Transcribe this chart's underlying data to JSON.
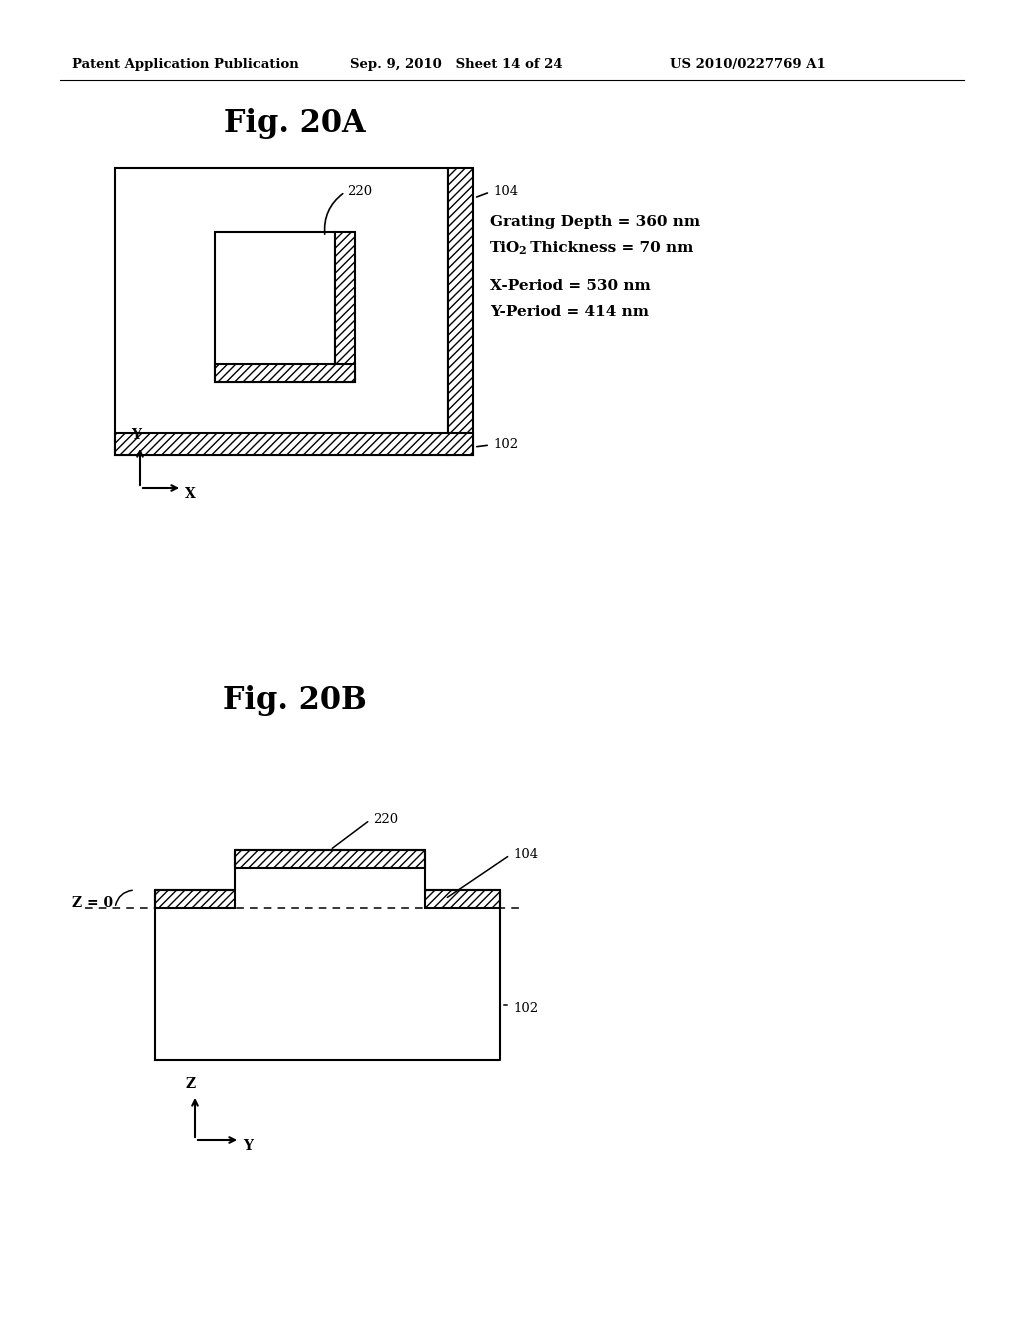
{
  "header_left": "Patent Application Publication",
  "header_mid": "Sep. 9, 2010   Sheet 14 of 24",
  "header_right": "US 2010/0227769 A1",
  "fig_a_title": "Fig. 20A",
  "fig_b_title": "Fig. 20B",
  "bg_color": "#ffffff",
  "line_color": "#000000",
  "param_line1": "Grating Depth = 360 nm",
  "param_line2a": "TiO",
  "param_line2b": "2",
  "param_line2c": " Thickness = 70 nm",
  "param_line3": "X-Period = 530 nm",
  "param_line4": "Y-Period = 414 nm",
  "label_220": "220",
  "label_104": "104",
  "label_102": "102",
  "label_z0": "Z = 0",
  "label_Y_a": "Y",
  "label_X": "X",
  "label_Z": "Z",
  "label_Y_b": "Y"
}
